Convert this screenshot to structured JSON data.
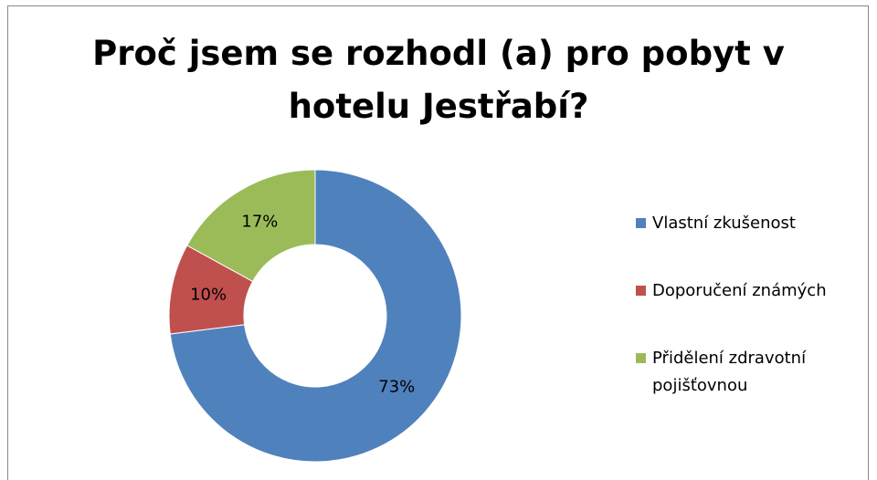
{
  "chart_data": {
    "type": "donut",
    "title": "Proč jsem se rozhodl (a) pro pobyt v hotelu Jestřabí?",
    "categories": [
      "Vlastní zkušenost",
      "Doporučení známých",
      "Přidělení zdravotní pojišťovnou"
    ],
    "values": [
      73,
      10,
      17
    ],
    "value_labels": [
      "73%",
      "10%",
      "17%"
    ],
    "colors": [
      "#4f81bd",
      "#c0504d",
      "#9bbb59"
    ],
    "legend": "right"
  }
}
